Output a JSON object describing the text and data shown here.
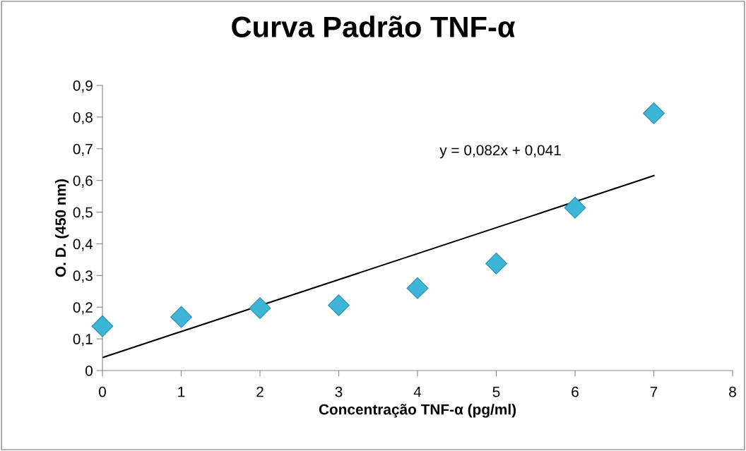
{
  "chart_data": {
    "type": "scatter",
    "title": "Curva Padrão TNF-α",
    "xlabel": "Concentração TNF-α (pg/ml)",
    "ylabel": "O. D. (450 nm)",
    "x": [
      0,
      1,
      2,
      3,
      4,
      5,
      6,
      7
    ],
    "series": [
      {
        "color": "#3db5d6",
        "marker": "diamond",
        "values": [
          0.14,
          0.169,
          0.197,
          0.206,
          0.26,
          0.338,
          0.514,
          0.812
        ]
      },
      {
        "type": "line",
        "marker": "none",
        "color": "#000000",
        "x": [
          0,
          7
        ],
        "values": [
          0.041,
          0.615
        ]
      }
    ],
    "grid": false,
    "legend": false,
    "xlim": [
      0,
      8
    ],
    "xticks": [
      0,
      1,
      2,
      3,
      4,
      5,
      6,
      7,
      8
    ],
    "ylim": [
      0,
      0.9
    ],
    "yticks": [
      0,
      {
        "value": 0.1,
        "label": "0,1"
      },
      {
        "value": 0.2,
        "label": "0,2"
      },
      {
        "value": 0.3,
        "label": "0,3"
      },
      {
        "value": 0.4,
        "label": "0,4"
      },
      {
        "value": 0.5,
        "label": "0,5"
      },
      {
        "value": 0.6,
        "label": "0,6"
      },
      {
        "value": 0.7,
        "label": "0,7"
      },
      {
        "value": 0.8,
        "label": "0,8"
      },
      {
        "value": 0.9,
        "label": "0,9"
      }
    ],
    "annotations": [
      "y = 0,082x + 0,041"
    ]
  }
}
